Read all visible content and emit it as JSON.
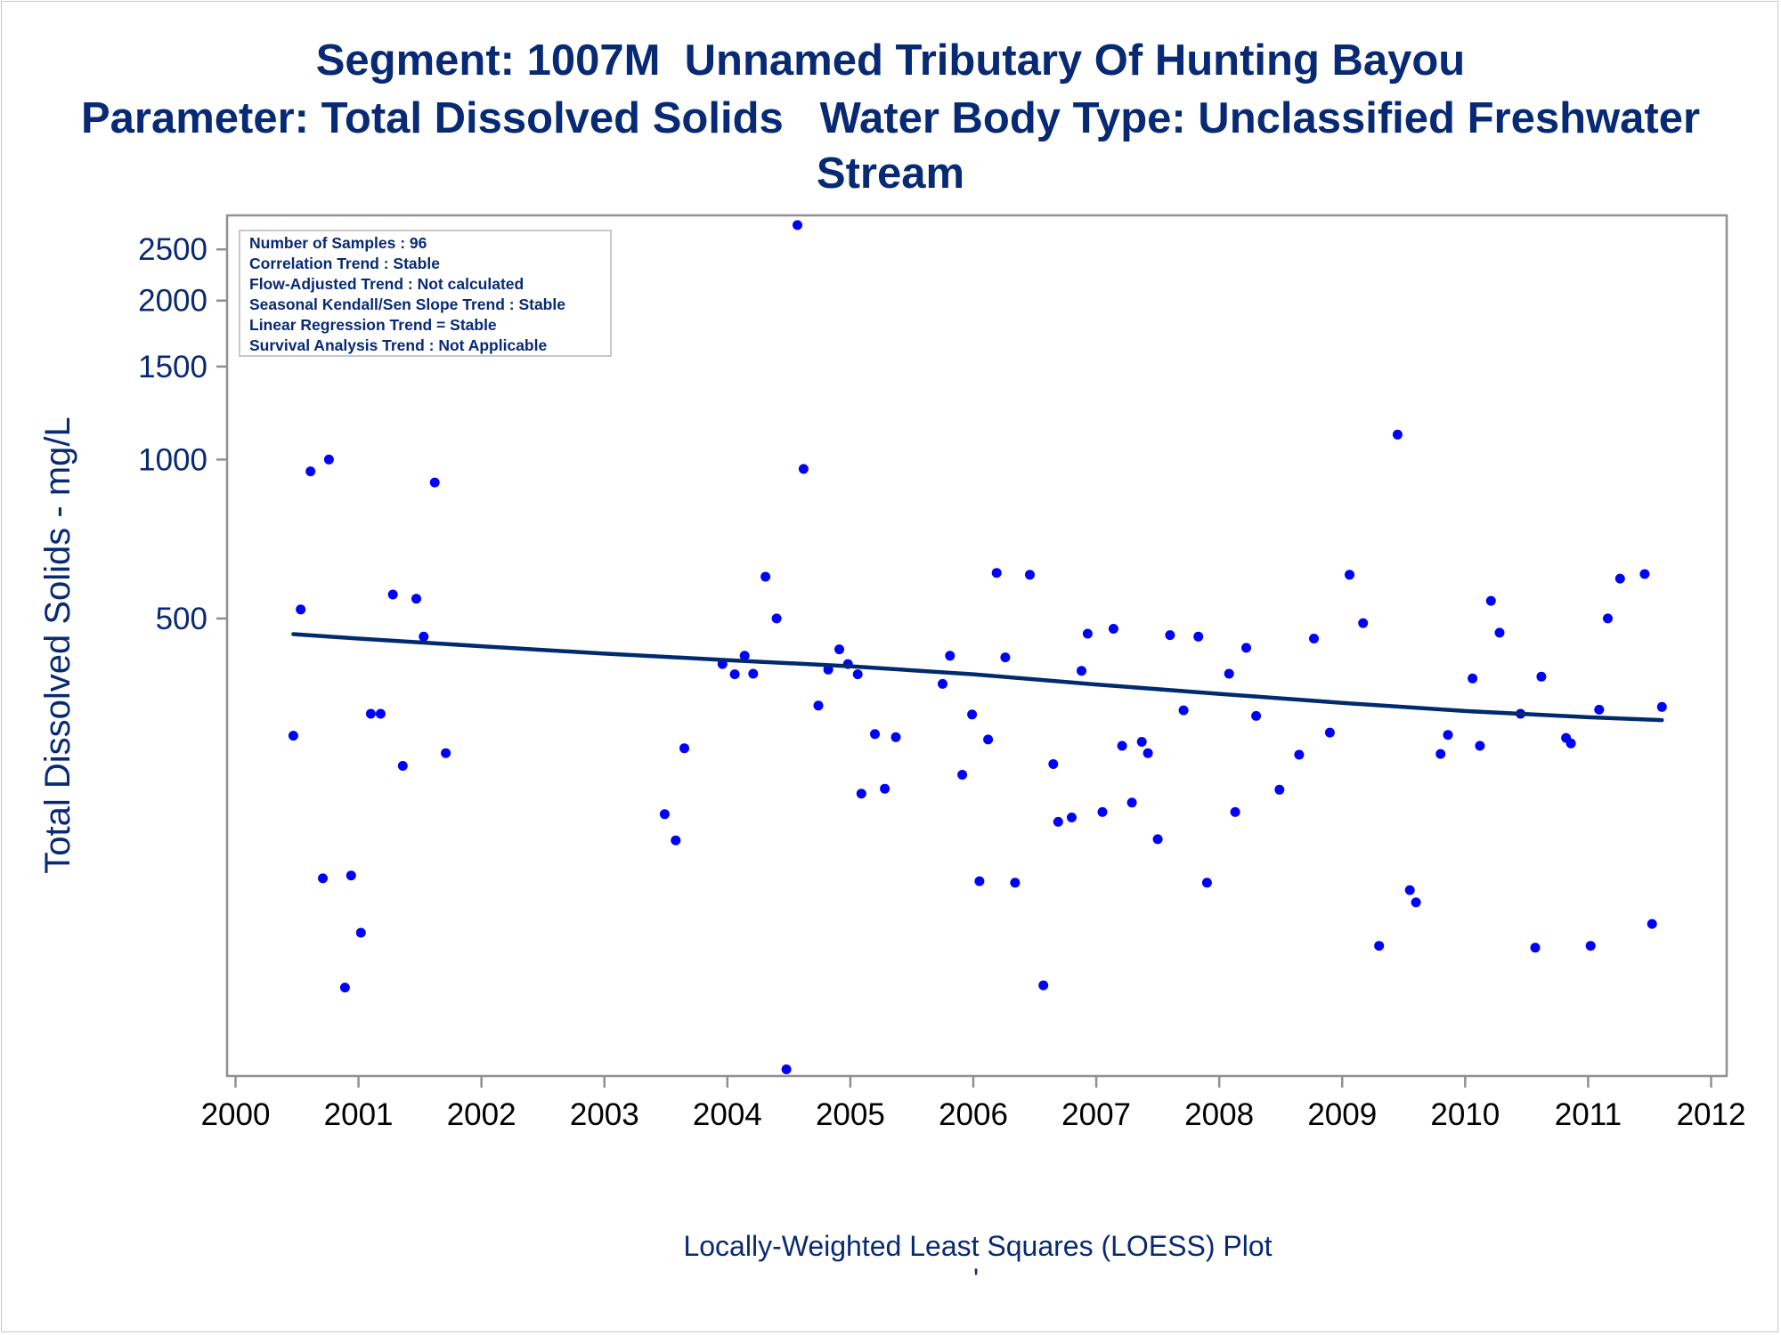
{
  "titles": {
    "line1": "Segment: 1007M  Unnamed Tributary Of Hunting Bayou",
    "line2": "Parameter: Total Dissolved Solids   Water Body Type: Unclassified Freshwater",
    "line3": "Stream"
  },
  "stats_box": [
    "Number of Samples : 96",
    "Correlation Trend : Stable",
    "Flow-Adjusted Trend : Not calculated",
    "Seasonal Kendall/Sen Slope Trend : Stable",
    "Linear Regression Trend = Stable",
    "Survival Analysis Trend : Not Applicable"
  ],
  "footnote": "Locally-Weighted Least Squares (LOESS) Plot",
  "footnote_mark": "'",
  "colors": {
    "text": "#082a75",
    "points": "#0000ff",
    "line": "#002a6e",
    "axis": "#909090"
  },
  "chart_data": {
    "type": "scatter",
    "xlabel": "",
    "ylabel": "Total Dissolved Solids - mg/L",
    "xlim": [
      2000,
      2012
    ],
    "ylim": [
      68,
      2900
    ],
    "y_scale": "log",
    "x_ticks": [
      "2000",
      "2001",
      "2002",
      "2003",
      "2004",
      "2005",
      "2006",
      "2007",
      "2008",
      "2009",
      "2010",
      "2011",
      "2012"
    ],
    "y_ticks": [
      500,
      1000,
      1500,
      2000,
      2500
    ],
    "grid": false,
    "points": [
      {
        "x": 2000.47,
        "y": 300
      },
      {
        "x": 2000.53,
        "y": 520
      },
      {
        "x": 2000.61,
        "y": 950
      },
      {
        "x": 2000.71,
        "y": 161
      },
      {
        "x": 2000.76,
        "y": 1000
      },
      {
        "x": 2000.89,
        "y": 100
      },
      {
        "x": 2000.94,
        "y": 163
      },
      {
        "x": 2001.02,
        "y": 127
      },
      {
        "x": 2001.1,
        "y": 330
      },
      {
        "x": 2001.18,
        "y": 330
      },
      {
        "x": 2001.28,
        "y": 555
      },
      {
        "x": 2001.36,
        "y": 263
      },
      {
        "x": 2001.47,
        "y": 545
      },
      {
        "x": 2001.53,
        "y": 462
      },
      {
        "x": 2001.62,
        "y": 905
      },
      {
        "x": 2001.71,
        "y": 278
      },
      {
        "x": 2003.49,
        "y": 213
      },
      {
        "x": 2003.58,
        "y": 190
      },
      {
        "x": 2003.65,
        "y": 284
      },
      {
        "x": 2003.96,
        "y": 410
      },
      {
        "x": 2004.06,
        "y": 392
      },
      {
        "x": 2004.14,
        "y": 425
      },
      {
        "x": 2004.21,
        "y": 393
      },
      {
        "x": 2004.31,
        "y": 600
      },
      {
        "x": 2004.4,
        "y": 500
      },
      {
        "x": 2004.48,
        "y": 70
      },
      {
        "x": 2004.57,
        "y": 2780
      },
      {
        "x": 2004.62,
        "y": 960
      },
      {
        "x": 2004.74,
        "y": 342
      },
      {
        "x": 2004.82,
        "y": 400
      },
      {
        "x": 2004.91,
        "y": 437
      },
      {
        "x": 2004.98,
        "y": 410
      },
      {
        "x": 2005.06,
        "y": 392
      },
      {
        "x": 2005.09,
        "y": 233
      },
      {
        "x": 2005.2,
        "y": 302
      },
      {
        "x": 2005.28,
        "y": 238
      },
      {
        "x": 2005.37,
        "y": 298
      },
      {
        "x": 2005.75,
        "y": 376
      },
      {
        "x": 2005.81,
        "y": 425
      },
      {
        "x": 2005.91,
        "y": 253
      },
      {
        "x": 2005.99,
        "y": 329
      },
      {
        "x": 2006.05,
        "y": 159
      },
      {
        "x": 2006.12,
        "y": 295
      },
      {
        "x": 2006.19,
        "y": 610
      },
      {
        "x": 2006.26,
        "y": 422
      },
      {
        "x": 2006.34,
        "y": 158
      },
      {
        "x": 2006.46,
        "y": 605
      },
      {
        "x": 2006.57,
        "y": 101
      },
      {
        "x": 2006.65,
        "y": 265
      },
      {
        "x": 2006.69,
        "y": 206
      },
      {
        "x": 2006.8,
        "y": 210
      },
      {
        "x": 2006.88,
        "y": 398
      },
      {
        "x": 2006.93,
        "y": 468
      },
      {
        "x": 2007.05,
        "y": 215
      },
      {
        "x": 2007.14,
        "y": 478
      },
      {
        "x": 2007.21,
        "y": 287
      },
      {
        "x": 2007.29,
        "y": 224
      },
      {
        "x": 2007.37,
        "y": 292
      },
      {
        "x": 2007.42,
        "y": 278
      },
      {
        "x": 2007.5,
        "y": 191
      },
      {
        "x": 2007.6,
        "y": 465
      },
      {
        "x": 2007.71,
        "y": 335
      },
      {
        "x": 2007.83,
        "y": 462
      },
      {
        "x": 2007.9,
        "y": 158
      },
      {
        "x": 2008.08,
        "y": 393
      },
      {
        "x": 2008.13,
        "y": 215
      },
      {
        "x": 2008.22,
        "y": 440
      },
      {
        "x": 2008.3,
        "y": 327
      },
      {
        "x": 2008.49,
        "y": 237
      },
      {
        "x": 2008.65,
        "y": 276
      },
      {
        "x": 2008.77,
        "y": 458
      },
      {
        "x": 2008.9,
        "y": 304
      },
      {
        "x": 2009.06,
        "y": 605
      },
      {
        "x": 2009.17,
        "y": 490
      },
      {
        "x": 2009.3,
        "y": 120
      },
      {
        "x": 2009.45,
        "y": 1115
      },
      {
        "x": 2009.55,
        "y": 153
      },
      {
        "x": 2009.6,
        "y": 145
      },
      {
        "x": 2009.8,
        "y": 277
      },
      {
        "x": 2009.86,
        "y": 301
      },
      {
        "x": 2010.06,
        "y": 385
      },
      {
        "x": 2010.12,
        "y": 287
      },
      {
        "x": 2010.21,
        "y": 540
      },
      {
        "x": 2010.28,
        "y": 470
      },
      {
        "x": 2010.45,
        "y": 330
      },
      {
        "x": 2010.57,
        "y": 119
      },
      {
        "x": 2010.62,
        "y": 388
      },
      {
        "x": 2010.82,
        "y": 297
      },
      {
        "x": 2010.86,
        "y": 290
      },
      {
        "x": 2011.02,
        "y": 120
      },
      {
        "x": 2011.09,
        "y": 336
      },
      {
        "x": 2011.16,
        "y": 500
      },
      {
        "x": 2011.26,
        "y": 595
      },
      {
        "x": 2011.46,
        "y": 607
      },
      {
        "x": 2011.52,
        "y": 132
      },
      {
        "x": 2011.6,
        "y": 340
      }
    ],
    "loess_line": [
      {
        "x": 2000.47,
        "y": 467
      },
      {
        "x": 2001.0,
        "y": 458
      },
      {
        "x": 2002.0,
        "y": 443
      },
      {
        "x": 2003.0,
        "y": 429
      },
      {
        "x": 2004.0,
        "y": 417
      },
      {
        "x": 2005.0,
        "y": 406
      },
      {
        "x": 2006.0,
        "y": 392
      },
      {
        "x": 2007.0,
        "y": 375
      },
      {
        "x": 2008.0,
        "y": 360
      },
      {
        "x": 2009.0,
        "y": 346
      },
      {
        "x": 2010.0,
        "y": 334
      },
      {
        "x": 2011.0,
        "y": 325
      },
      {
        "x": 2011.6,
        "y": 321
      }
    ]
  }
}
